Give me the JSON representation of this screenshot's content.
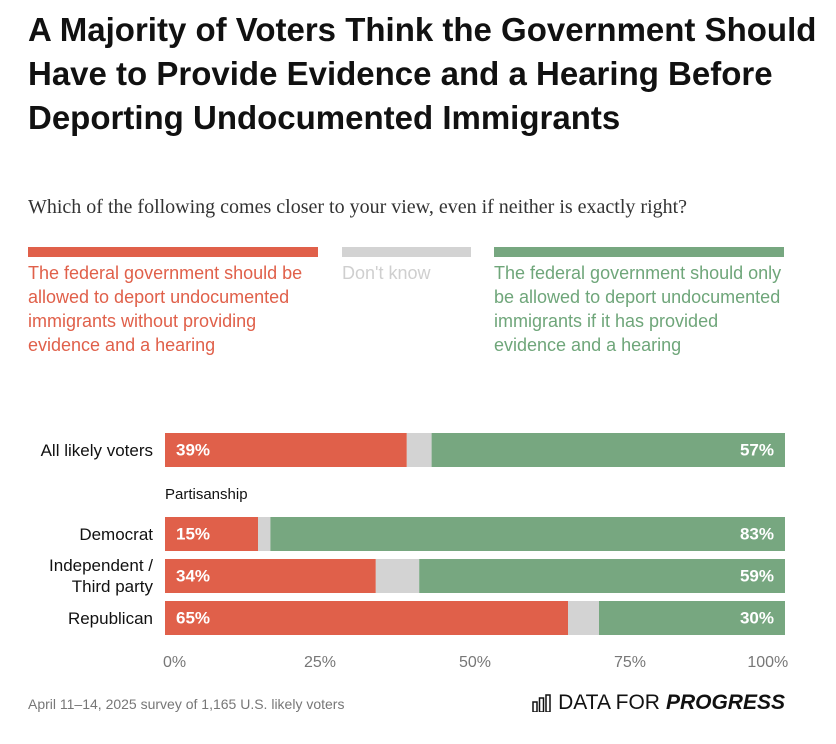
{
  "chart_data": {
    "type": "stacked_bar",
    "orientation": "horizontal",
    "title": "A Majority of Voters Think the Government Should Have to Provide Evidence and a Hearing Before Deporting Undocumented Immigrants",
    "subtitle": "Which of the following comes closer to your view, even if neither is exactly right?",
    "categories": [
      "All likely voters",
      "Democrat",
      "Independent / Third party",
      "Republican"
    ],
    "group_label": "Partisanship",
    "series": [
      {
        "name": "The federal government should be allowed to deport undocumented immigrants without providing evidence and a hearing",
        "color": "#e0604a",
        "text_color": "#e0604a",
        "values": [
          39,
          15,
          34,
          65
        ],
        "value_labels": [
          "39%",
          "15%",
          "34%",
          "65%"
        ]
      },
      {
        "name": "Don't know",
        "color": "#d3d3d3",
        "text_color": "#cfcfcf",
        "values": [
          4,
          2,
          7,
          5
        ]
      },
      {
        "name": "The federal government should only be allowed to deport undocumented immigrants if it has provided evidence and a hearing",
        "color": "#77a780",
        "text_color": "#6fa67a",
        "values": [
          57,
          83,
          59,
          30
        ],
        "value_labels": [
          "57%",
          "83%",
          "59%",
          "30%"
        ]
      }
    ],
    "xlim": [
      0,
      100
    ],
    "xticks": [
      {
        "value": 0,
        "label": "0%"
      },
      {
        "value": 25,
        "label": "25%"
      },
      {
        "value": 50,
        "label": "50%"
      },
      {
        "value": 75,
        "label": "75%"
      },
      {
        "value": 100,
        "label": "100%"
      }
    ],
    "grid": false,
    "note": "April 11–14, 2025 survey of 1,165 U.S. likely voters",
    "logo": [
      "DATA FOR",
      "PROGRESS"
    ]
  }
}
